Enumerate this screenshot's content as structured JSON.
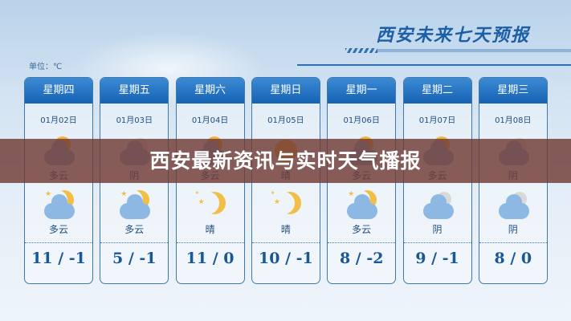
{
  "title": "西安未来七天预报",
  "unit": "单位：℃",
  "banner": "西安最新资讯与实时天气播报",
  "days": [
    {
      "weekday": "星期四",
      "date": "01月02日",
      "day_icon": "partly-cloudy-day-icon",
      "day": "多云",
      "night_icon": "partly-cloudy-night-icon",
      "night": "多云",
      "temp": "11 / -1"
    },
    {
      "weekday": "星期五",
      "date": "01月03日",
      "day_icon": "overcast-icon",
      "day": "阴",
      "night_icon": "partly-cloudy-night-icon",
      "night": "多云",
      "temp": "5 / -1"
    },
    {
      "weekday": "星期六",
      "date": "01月04日",
      "day_icon": "partly-cloudy-day-icon",
      "day": "多云",
      "night_icon": "clear-night-icon",
      "night": "晴",
      "temp": "11 / 0"
    },
    {
      "weekday": "星期日",
      "date": "01月05日",
      "day_icon": "sunny-icon",
      "day": "晴",
      "night_icon": "clear-night-icon",
      "night": "晴",
      "temp": "10 / -1"
    },
    {
      "weekday": "星期一",
      "date": "01月06日",
      "day_icon": "partly-cloudy-day-icon",
      "day": "多云",
      "night_icon": "partly-cloudy-night-icon",
      "night": "多云",
      "temp": "8 / -2"
    },
    {
      "weekday": "星期二",
      "date": "01月07日",
      "day_icon": "partly-cloudy-day-icon",
      "day": "多云",
      "night_icon": "overcast-icon",
      "night": "阴",
      "temp": "9 / -1"
    },
    {
      "weekday": "星期三",
      "date": "01月08日",
      "day_icon": "overcast-icon",
      "day": "阴",
      "night_icon": "overcast-icon",
      "night": "阴",
      "temp": "8 / 0"
    }
  ]
}
